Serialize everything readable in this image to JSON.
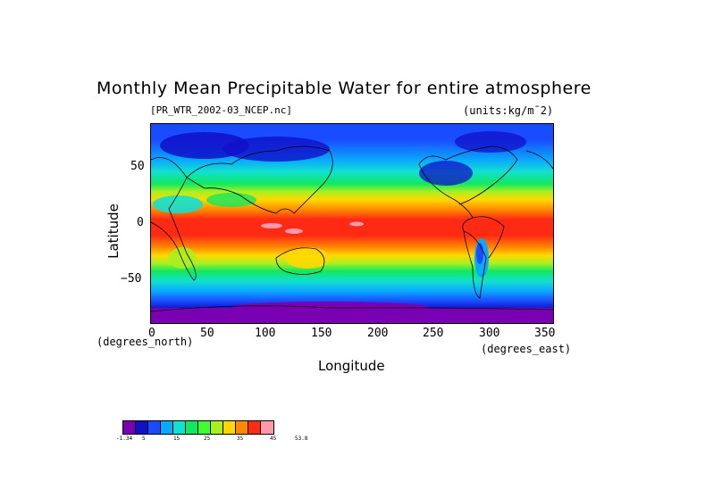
{
  "title": "Monthly Mean Precipitable Water for entire atmosphere",
  "subtitle_left": "[PR_WTR_2002-03_NCEP.nc]",
  "subtitle_right": "(units:kg/m¯2)",
  "axes": {
    "ylabel": "Latitude",
    "yunits": "(degrees_north)",
    "xlabel": "Longitude",
    "xunits": "(degrees_east)",
    "yticks": [
      "50",
      "0",
      "−50"
    ],
    "xticks": [
      "0",
      "50",
      "100",
      "150",
      "200",
      "250",
      "300",
      "350"
    ]
  },
  "colorbar": {
    "colors": [
      "#7a00b4",
      "#1010c8",
      "#1a4cff",
      "#0aa8ff",
      "#12e0d0",
      "#10e860",
      "#40ff30",
      "#a8f020",
      "#ffd800",
      "#ff8a00",
      "#ff2a14",
      "#ff9aaa"
    ],
    "labels": [
      "-1.34",
      "5",
      "15",
      "25",
      "35",
      "45",
      "53.8"
    ]
  },
  "chart_data": {
    "type": "heatmap",
    "title": "Monthly Mean Precipitable Water for entire atmosphere",
    "xlabel": "Longitude",
    "ylabel": "Latitude",
    "xlim": [
      0,
      357.5
    ],
    "ylim": [
      -90,
      90
    ],
    "units": "kg/m^2",
    "value_range": [
      -1.34,
      53.8
    ],
    "zonal_profile": {
      "lat": [
        90,
        70,
        55,
        45,
        35,
        25,
        15,
        5,
        0,
        -5,
        -15,
        -25,
        -35,
        -45,
        -55,
        -65,
        -80,
        -90
      ],
      "precipitable_water": [
        3,
        5,
        10,
        15,
        22,
        32,
        42,
        47,
        46,
        47,
        42,
        32,
        22,
        15,
        10,
        6,
        2,
        1
      ]
    }
  }
}
